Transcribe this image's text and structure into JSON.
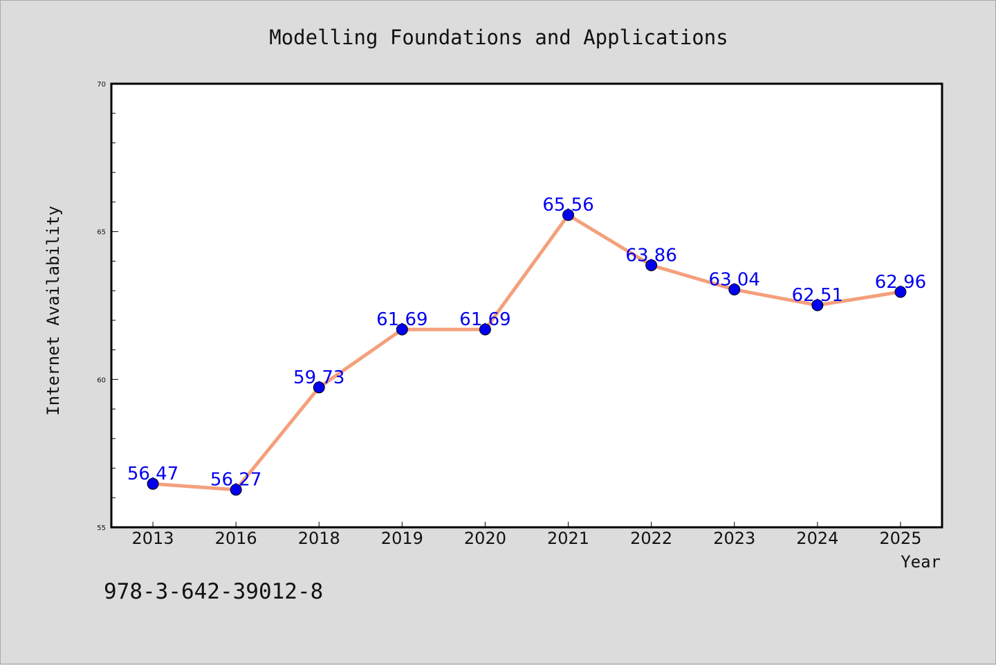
{
  "chart_data": {
    "type": "line",
    "title": "Modelling Foundations and Applications",
    "xlabel": "Year",
    "ylabel": "Internet Availability",
    "categories": [
      "2013",
      "2016",
      "2018",
      "2019",
      "2020",
      "2021",
      "2022",
      "2023",
      "2024",
      "2025"
    ],
    "series": [
      {
        "values": [
          56.47,
          56.27,
          59.73,
          61.69,
          61.69,
          65.56,
          63.86,
          63.04,
          62.51,
          62.96
        ]
      }
    ],
    "data_labels": [
      "56.47",
      "56.27",
      "59.73",
      "61.69",
      "61.69",
      "65.56",
      "63.86",
      "63.04",
      "62.51",
      "62.96"
    ],
    "ylim": [
      55,
      70
    ],
    "yticks": [
      "55",
      "60",
      "65",
      "70"
    ],
    "grid": false,
    "line_color": "#f4a07c",
    "marker_color": "#0000ee",
    "label_color": "#0000ee"
  },
  "footer": {
    "isbn": "978-3-642-39012-8"
  }
}
